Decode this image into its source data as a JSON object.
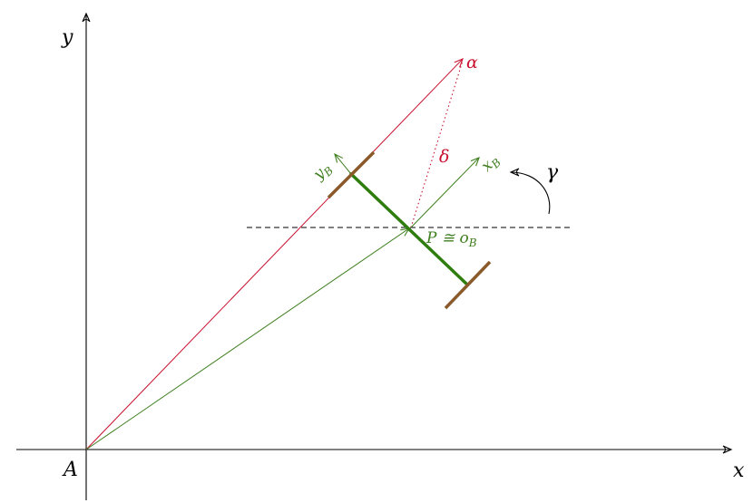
{
  "labels": {
    "x_axis": "x",
    "y_axis": "y",
    "origin": "A",
    "alpha": "α",
    "delta": "δ",
    "gamma": "γ",
    "x_body_main": "x",
    "x_body_sub": "B",
    "y_body_main": "y",
    "y_body_sub": "B",
    "point_main": "P ≅ o",
    "point_sub": "B"
  },
  "colors": {
    "axis": "#000000",
    "alpha_vector": "#c8102e",
    "body_frame": "#3f7f1f",
    "robot_body": "#2e7d0e",
    "wheels": "#8b5a2b",
    "reference_line": "#000000"
  }
}
